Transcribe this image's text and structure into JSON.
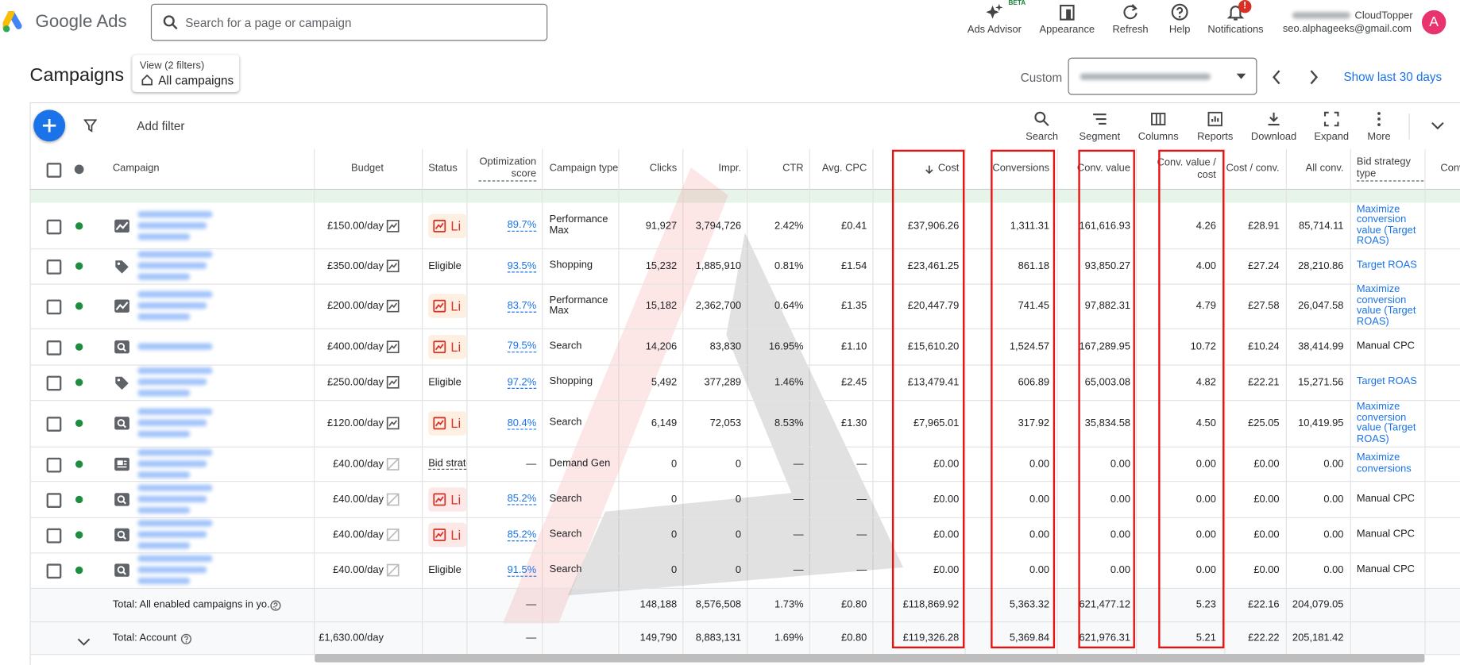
{
  "top_bar": {
    "product": "Google Ads",
    "search_placeholder": "Search for a page or campaign",
    "beta": "BETA",
    "notification_badge": "!",
    "actions": [
      "Ads Advisor",
      "Appearance",
      "Refresh",
      "Help",
      "Notifications"
    ],
    "account_name": "CloudTopper",
    "account_email": "seo.alphageeks@gmail.com",
    "avatar": "A"
  },
  "page_header": {
    "title": "Campaigns",
    "view_label": "View (2 filters)",
    "view_value": "All campaigns",
    "date_mode": "Custom",
    "show_last": "Show last 30 days"
  },
  "toolbar": {
    "add_filter": "Add filter",
    "actions": [
      "Search",
      "Segment",
      "Columns",
      "Reports",
      "Download",
      "Expand",
      "More"
    ]
  },
  "table": {
    "headers": [
      "Campaign",
      "Budget",
      "Status",
      "Optimization score",
      "Campaign type",
      "Clicks",
      "Impr.",
      "CTR",
      "Avg. CPC",
      "Cost",
      "Conversions",
      "Conv. value",
      "Conv. value / cost",
      "Cost / conv.",
      "All conv.",
      "Bid strategy type",
      "Conv"
    ],
    "rows": [
      {
        "budget": "£150.00/day",
        "status": "Li",
        "optimization_score": "89.7%",
        "campaign_type": "Performance Max",
        "clicks": "91,927",
        "impressions": "3,794,726",
        "ctr": "2.42%",
        "avg_cpc": "£0.41",
        "cost": "£37,906.26",
        "conversions": "1,311.31",
        "conv_value": "161,616.93",
        "conv_value_per_cost": "4.26",
        "cost_per_conv": "£28.91",
        "all_conv": "85,714.11",
        "bid_strategy_type": "Maximize conversion value (Target ROAS)"
      },
      {
        "budget": "£350.00/day",
        "status": "Eligible",
        "optimization_score": "93.5%",
        "campaign_type": "Shopping",
        "clicks": "15,232",
        "impressions": "1,885,910",
        "ctr": "0.81%",
        "avg_cpc": "£1.54",
        "cost": "£23,461.25",
        "conversions": "861.18",
        "conv_value": "93,850.27",
        "conv_value_per_cost": "4.00",
        "cost_per_conv": "£27.24",
        "all_conv": "28,210.86",
        "bid_strategy_type": "Target ROAS"
      },
      {
        "budget": "£200.00/day",
        "status": "Li",
        "optimization_score": "83.7%",
        "campaign_type": "Performance Max",
        "clicks": "15,182",
        "impressions": "2,362,700",
        "ctr": "0.64%",
        "avg_cpc": "£1.35",
        "cost": "£20,447.79",
        "conversions": "741.45",
        "conv_value": "97,882.31",
        "conv_value_per_cost": "4.79",
        "cost_per_conv": "£27.58",
        "all_conv": "26,047.58",
        "bid_strategy_type": "Maximize conversion value (Target ROAS)"
      },
      {
        "budget": "£400.00/day",
        "status": "Li",
        "optimization_score": "79.5%",
        "campaign_type": "Search",
        "clicks": "14,206",
        "impressions": "83,830",
        "ctr": "16.95%",
        "avg_cpc": "£1.10",
        "cost": "£15,610.20",
        "conversions": "1,524.57",
        "conv_value": "167,289.95",
        "conv_value_per_cost": "10.72",
        "cost_per_conv": "£10.24",
        "all_conv": "38,414.99",
        "bid_strategy_type": "Manual CPC"
      },
      {
        "budget": "£250.00/day",
        "status": "Eligible",
        "optimization_score": "97.2%",
        "campaign_type": "Shopping",
        "clicks": "5,492",
        "impressions": "377,289",
        "ctr": "1.46%",
        "avg_cpc": "£2.45",
        "cost": "£13,479.41",
        "conversions": "606.89",
        "conv_value": "65,003.08",
        "conv_value_per_cost": "4.82",
        "cost_per_conv": "£22.21",
        "all_conv": "15,271.56",
        "bid_strategy_type": "Target ROAS"
      },
      {
        "budget": "£120.00/day",
        "status": "Li",
        "optimization_score": "80.4%",
        "campaign_type": "Search",
        "clicks": "6,149",
        "impressions": "72,053",
        "ctr": "8.53%",
        "avg_cpc": "£1.30",
        "cost": "£7,965.01",
        "conversions": "317.92",
        "conv_value": "35,834.58",
        "conv_value_per_cost": "4.50",
        "cost_per_conv": "£25.05",
        "all_conv": "10,419.95",
        "bid_strategy_type": "Maximize conversion value (Target ROAS)"
      },
      {
        "budget": "£40.00/day",
        "status": "Bid strate",
        "optimization_score": "—",
        "campaign_type": "Demand Gen",
        "clicks": "0",
        "impressions": "0",
        "ctr": "—",
        "avg_cpc": "—",
        "cost": "£0.00",
        "conversions": "0.00",
        "conv_value": "0.00",
        "conv_value_per_cost": "0.00",
        "cost_per_conv": "£0.00",
        "all_conv": "0.00",
        "bid_strategy_type": "Maximize conversions"
      },
      {
        "budget": "£40.00/day",
        "status": "Li",
        "optimization_score": "85.2%",
        "campaign_type": "Search",
        "clicks": "0",
        "impressions": "0",
        "ctr": "—",
        "avg_cpc": "—",
        "cost": "£0.00",
        "conversions": "0.00",
        "conv_value": "0.00",
        "conv_value_per_cost": "0.00",
        "cost_per_conv": "£0.00",
        "all_conv": "0.00",
        "bid_strategy_type": "Manual CPC"
      },
      {
        "budget": "£40.00/day",
        "status": "Li",
        "optimization_score": "85.2%",
        "campaign_type": "Search",
        "clicks": "0",
        "impressions": "0",
        "ctr": "—",
        "avg_cpc": "—",
        "cost": "£0.00",
        "conversions": "0.00",
        "conv_value": "0.00",
        "conv_value_per_cost": "0.00",
        "cost_per_conv": "£0.00",
        "all_conv": "0.00",
        "bid_strategy_type": "Manual CPC"
      },
      {
        "budget": "£40.00/day",
        "status": "Eligible",
        "optimization_score": "91.5%",
        "campaign_type": "Search",
        "clicks": "0",
        "impressions": "0",
        "ctr": "—",
        "avg_cpc": "—",
        "cost": "£0.00",
        "conversions": "0.00",
        "conv_value": "0.00",
        "conv_value_per_cost": "0.00",
        "cost_per_conv": "£0.00",
        "all_conv": "0.00",
        "bid_strategy_type": "Manual CPC"
      }
    ],
    "totals": [
      {
        "label": "Total: All enabled campaigns in yo...",
        "optimization_score": "—",
        "clicks": "148,188",
        "impressions": "8,576,508",
        "ctr": "1.73%",
        "avg_cpc": "£0.80",
        "cost": "£118,869.92",
        "conversions": "5,363.32",
        "conv_value": "621,477.12",
        "conv_value_per_cost": "5.23",
        "cost_per_conv": "£22.16",
        "all_conv": "204,079.05"
      },
      {
        "label": "Total: Account",
        "budget": "£1,630.00/day",
        "optimization_score": "—",
        "clicks": "149,790",
        "impressions": "8,883,131",
        "ctr": "1.69%",
        "avg_cpc": "£0.80",
        "cost": "£119,326.28",
        "conversions": "5,369.84",
        "conv_value": "621,976.31",
        "conv_value_per_cost": "5.21",
        "cost_per_conv": "£22.22",
        "all_conv": "205,181.42"
      }
    ]
  }
}
